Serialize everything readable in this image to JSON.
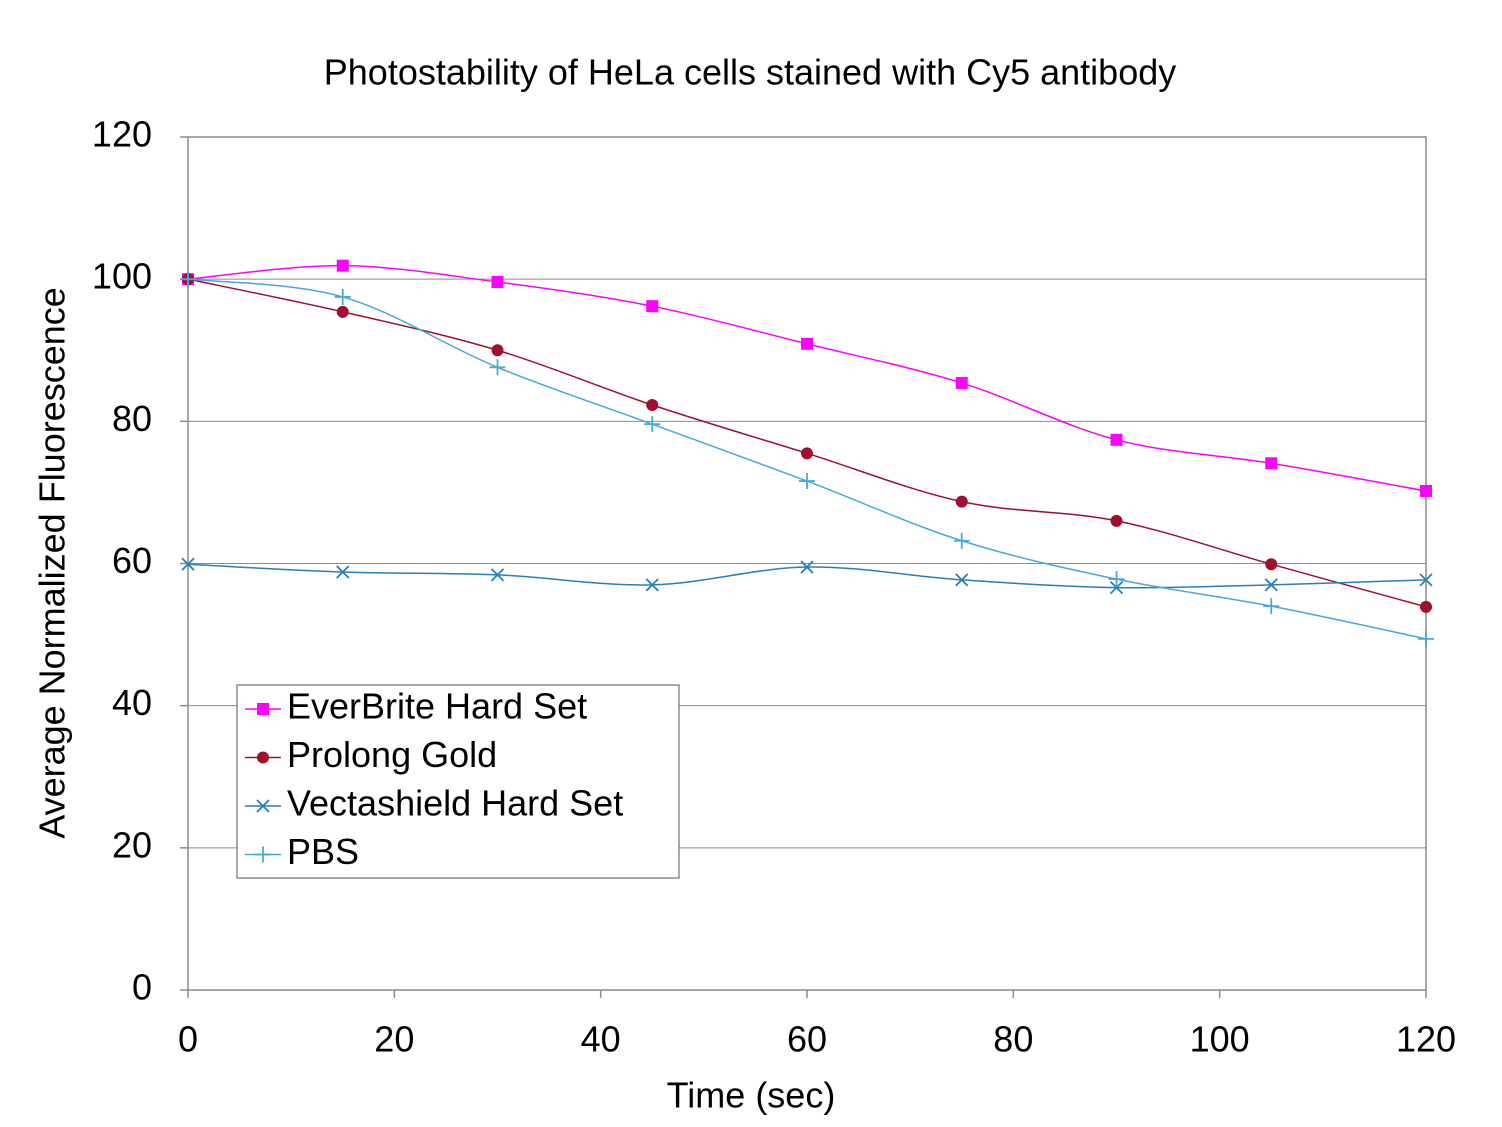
{
  "chart_data": {
    "type": "line",
    "title": "Photostability of HeLa cells stained with Cy5 antibody",
    "x_label": "Time (sec)",
    "y_label": "Average Normalized Fluorescence",
    "x": [
      0,
      15,
      30,
      45,
      60,
      75,
      90,
      105,
      120
    ],
    "series": [
      {
        "name": "EverBrite Hard Set",
        "color": "#ff00ff",
        "marker": "square",
        "values": [
          100,
          101.9,
          99.6,
          96.2,
          90.9,
          85.4,
          77.4,
          74.1,
          70.2
        ]
      },
      {
        "name": "Prolong Gold",
        "color": "#a0102e",
        "marker": "circle",
        "values": [
          100,
          95.4,
          90.0,
          82.3,
          75.5,
          68.7,
          66.0,
          59.9,
          53.9
        ]
      },
      {
        "name": "Vectashield Hard Set",
        "color": "#2a7fb8",
        "marker": "x",
        "values": [
          59.9,
          58.8,
          58.4,
          57.0,
          59.5,
          57.7,
          56.6,
          57.0,
          57.7
        ]
      },
      {
        "name": "PBS",
        "color": "#4aa8d8",
        "marker": "plus",
        "values": [
          100,
          97.5,
          87.6,
          79.6,
          71.6,
          63.2,
          57.8,
          54.0,
          49.4
        ]
      }
    ],
    "xlim": [
      0,
      120
    ],
    "xticks": [
      0,
      20,
      40,
      60,
      80,
      100,
      120
    ],
    "ylim": [
      0,
      120
    ],
    "yticks": [
      0,
      20,
      40,
      60,
      80,
      100,
      120
    ],
    "grid": true,
    "smooth": true,
    "legend": "lower left"
  }
}
